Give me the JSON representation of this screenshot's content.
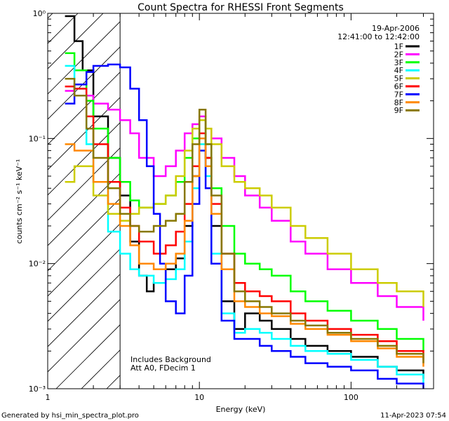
{
  "chart_data": {
    "type": "line",
    "title": "Count Spectra for RHESSI Front Segments",
    "xlabel": "Energy (keV)",
    "ylabel": "counts cm⁻² s⁻¹ keV⁻¹",
    "x_scale": "log",
    "y_scale": "log",
    "xlim": [
      1,
      350
    ],
    "ylim": [
      0.001,
      1
    ],
    "x_ticks": [
      {
        "value": 1,
        "label": "1"
      },
      {
        "value": 10,
        "label": "10"
      },
      {
        "value": 100,
        "label": "100"
      }
    ],
    "y_ticks": [
      {
        "value": 1,
        "label": "10⁰"
      },
      {
        "value": 0.1,
        "label": "10⁻¹"
      },
      {
        "value": 0.01,
        "label": "10⁻²"
      },
      {
        "value": 0.001,
        "label": "10⁻³"
      }
    ],
    "grid": false,
    "legend_position": "top-right",
    "info_date": "19-Apr-2006",
    "info_time": "12:41:00 to 12:42:00",
    "annotation_1": "Includes Background",
    "annotation_2": "Att A0, FDecim 1",
    "hatched_region_x": [
      1,
      3
    ],
    "series": [
      {
        "name": "1F",
        "color": "#000000",
        "points": [
          [
            1.3,
            0.95
          ],
          [
            1.5,
            0.6
          ],
          [
            1.7,
            0.35
          ],
          [
            2,
            0.15
          ],
          [
            2.5,
            0.07
          ],
          [
            3,
            0.035
          ],
          [
            3.5,
            0.015
          ],
          [
            4,
            0.008
          ],
          [
            4.5,
            0.006
          ],
          [
            5,
            0.007
          ],
          [
            6,
            0.009
          ],
          [
            7,
            0.011
          ],
          [
            8,
            0.02
          ],
          [
            9,
            0.05
          ],
          [
            10,
            0.1
          ],
          [
            11,
            0.07
          ],
          [
            12,
            0.02
          ],
          [
            14,
            0.005
          ],
          [
            17,
            0.003
          ],
          [
            20,
            0.004
          ],
          [
            25,
            0.0035
          ],
          [
            30,
            0.003
          ],
          [
            40,
            0.0025
          ],
          [
            50,
            0.0022
          ],
          [
            70,
            0.002
          ],
          [
            100,
            0.0018
          ],
          [
            150,
            0.0015
          ],
          [
            200,
            0.0014
          ],
          [
            300,
            0.0012
          ]
        ]
      },
      {
        "name": "2F",
        "color": "#ff00ff",
        "points": [
          [
            1.3,
            0.24
          ],
          [
            1.5,
            0.22
          ],
          [
            2,
            0.19
          ],
          [
            2.5,
            0.17
          ],
          [
            3,
            0.14
          ],
          [
            3.5,
            0.11
          ],
          [
            4,
            0.07
          ],
          [
            5,
            0.05
          ],
          [
            6,
            0.06
          ],
          [
            7,
            0.08
          ],
          [
            8,
            0.11
          ],
          [
            9,
            0.13
          ],
          [
            10,
            0.15
          ],
          [
            11,
            0.12
          ],
          [
            12,
            0.1
          ],
          [
            14,
            0.07
          ],
          [
            17,
            0.05
          ],
          [
            20,
            0.035
          ],
          [
            25,
            0.028
          ],
          [
            30,
            0.022
          ],
          [
            40,
            0.015
          ],
          [
            50,
            0.012
          ],
          [
            70,
            0.009
          ],
          [
            100,
            0.007
          ],
          [
            150,
            0.0055
          ],
          [
            200,
            0.0045
          ],
          [
            300,
            0.0035
          ]
        ]
      },
      {
        "name": "3F",
        "color": "#00ff00",
        "points": [
          [
            1.3,
            0.48
          ],
          [
            1.5,
            0.35
          ],
          [
            1.8,
            0.2
          ],
          [
            2,
            0.12
          ],
          [
            2.5,
            0.07
          ],
          [
            3,
            0.045
          ],
          [
            3.5,
            0.032
          ],
          [
            4,
            0.028
          ],
          [
            5,
            0.03
          ],
          [
            6,
            0.035
          ],
          [
            7,
            0.045
          ],
          [
            8,
            0.07
          ],
          [
            9,
            0.1
          ],
          [
            10,
            0.14
          ],
          [
            11,
            0.09
          ],
          [
            12,
            0.04
          ],
          [
            14,
            0.02
          ],
          [
            17,
            0.012
          ],
          [
            20,
            0.01
          ],
          [
            25,
            0.009
          ],
          [
            30,
            0.008
          ],
          [
            40,
            0.006
          ],
          [
            50,
            0.005
          ],
          [
            70,
            0.0042
          ],
          [
            100,
            0.0035
          ],
          [
            150,
            0.003
          ],
          [
            200,
            0.0025
          ],
          [
            300,
            0.002
          ]
        ]
      },
      {
        "name": "4F",
        "color": "#00ffff",
        "points": [
          [
            1.3,
            0.38
          ],
          [
            1.5,
            0.25
          ],
          [
            1.8,
            0.09
          ],
          [
            2,
            0.045
          ],
          [
            2.5,
            0.018
          ],
          [
            3,
            0.012
          ],
          [
            3.5,
            0.009
          ],
          [
            4,
            0.008
          ],
          [
            5,
            0.007
          ],
          [
            6,
            0.0075
          ],
          [
            7,
            0.009
          ],
          [
            8,
            0.015
          ],
          [
            9,
            0.04
          ],
          [
            10,
            0.09
          ],
          [
            11,
            0.05
          ],
          [
            12,
            0.012
          ],
          [
            14,
            0.004
          ],
          [
            17,
            0.0028
          ],
          [
            20,
            0.003
          ],
          [
            25,
            0.0028
          ],
          [
            30,
            0.0025
          ],
          [
            40,
            0.0022
          ],
          [
            50,
            0.002
          ],
          [
            70,
            0.0019
          ],
          [
            100,
            0.0017
          ],
          [
            150,
            0.0015
          ],
          [
            200,
            0.0013
          ],
          [
            300,
            0.0011
          ]
        ]
      },
      {
        "name": "5F",
        "color": "#cccc00",
        "points": [
          [
            1.3,
            0.045
          ],
          [
            1.5,
            0.06
          ],
          [
            2,
            0.035
          ],
          [
            2.5,
            0.025
          ],
          [
            3,
            0.022
          ],
          [
            3.5,
            0.025
          ],
          [
            4,
            0.028
          ],
          [
            5,
            0.03
          ],
          [
            6,
            0.035
          ],
          [
            7,
            0.05
          ],
          [
            8,
            0.08
          ],
          [
            9,
            0.12
          ],
          [
            10,
            0.14
          ],
          [
            11,
            0.12
          ],
          [
            12,
            0.09
          ],
          [
            14,
            0.06
          ],
          [
            17,
            0.045
          ],
          [
            20,
            0.04
          ],
          [
            25,
            0.035
          ],
          [
            30,
            0.028
          ],
          [
            40,
            0.02
          ],
          [
            50,
            0.016
          ],
          [
            70,
            0.012
          ],
          [
            100,
            0.009
          ],
          [
            150,
            0.007
          ],
          [
            200,
            0.006
          ],
          [
            300,
            0.0045
          ]
        ]
      },
      {
        "name": "6F",
        "color": "#ff0000",
        "points": [
          [
            1.3,
            0.26
          ],
          [
            1.5,
            0.25
          ],
          [
            1.8,
            0.15
          ],
          [
            2,
            0.09
          ],
          [
            2.5,
            0.045
          ],
          [
            3,
            0.028
          ],
          [
            3.5,
            0.02
          ],
          [
            4,
            0.015
          ],
          [
            5,
            0.012
          ],
          [
            6,
            0.014
          ],
          [
            7,
            0.018
          ],
          [
            8,
            0.03
          ],
          [
            9,
            0.06
          ],
          [
            10,
            0.11
          ],
          [
            11,
            0.07
          ],
          [
            12,
            0.03
          ],
          [
            14,
            0.012
          ],
          [
            17,
            0.007
          ],
          [
            20,
            0.006
          ],
          [
            25,
            0.0055
          ],
          [
            30,
            0.005
          ],
          [
            40,
            0.004
          ],
          [
            50,
            0.0035
          ],
          [
            70,
            0.003
          ],
          [
            100,
            0.0027
          ],
          [
            150,
            0.0024
          ],
          [
            200,
            0.002
          ],
          [
            300,
            0.0017
          ]
        ]
      },
      {
        "name": "7F",
        "color": "#0000ff",
        "points": [
          [
            1.3,
            0.19
          ],
          [
            1.5,
            0.27
          ],
          [
            1.8,
            0.34
          ],
          [
            2,
            0.38
          ],
          [
            2.5,
            0.39
          ],
          [
            3,
            0.37
          ],
          [
            3.5,
            0.25
          ],
          [
            4,
            0.14
          ],
          [
            4.5,
            0.06
          ],
          [
            5,
            0.025
          ],
          [
            5.5,
            0.01
          ],
          [
            6,
            0.005
          ],
          [
            7,
            0.004
          ],
          [
            8,
            0.008
          ],
          [
            9,
            0.03
          ],
          [
            10,
            0.08
          ],
          [
            11,
            0.04
          ],
          [
            12,
            0.01
          ],
          [
            14,
            0.0035
          ],
          [
            17,
            0.0025
          ],
          [
            20,
            0.0025
          ],
          [
            25,
            0.0022
          ],
          [
            30,
            0.002
          ],
          [
            40,
            0.0018
          ],
          [
            50,
            0.0016
          ],
          [
            70,
            0.0015
          ],
          [
            100,
            0.0014
          ],
          [
            150,
            0.0012
          ],
          [
            200,
            0.0011
          ],
          [
            300,
            0.001
          ]
        ]
      },
      {
        "name": "8F",
        "color": "#ff8800",
        "points": [
          [
            1.3,
            0.09
          ],
          [
            1.5,
            0.08
          ],
          [
            2,
            0.045
          ],
          [
            2.5,
            0.03
          ],
          [
            3,
            0.02
          ],
          [
            3.5,
            0.014
          ],
          [
            4,
            0.01
          ],
          [
            5,
            0.009
          ],
          [
            6,
            0.01
          ],
          [
            7,
            0.012
          ],
          [
            8,
            0.022
          ],
          [
            9,
            0.05
          ],
          [
            10,
            0.1
          ],
          [
            11,
            0.06
          ],
          [
            12,
            0.025
          ],
          [
            14,
            0.009
          ],
          [
            17,
            0.005
          ],
          [
            20,
            0.0045
          ],
          [
            25,
            0.004
          ],
          [
            30,
            0.0038
          ],
          [
            40,
            0.0033
          ],
          [
            50,
            0.003
          ],
          [
            70,
            0.0027
          ],
          [
            100,
            0.0024
          ],
          [
            150,
            0.0021
          ],
          [
            200,
            0.0018
          ],
          [
            300,
            0.0015
          ]
        ]
      },
      {
        "name": "9F",
        "color": "#887700",
        "points": [
          [
            1.3,
            0.3
          ],
          [
            1.5,
            0.22
          ],
          [
            1.8,
            0.12
          ],
          [
            2,
            0.07
          ],
          [
            2.5,
            0.04
          ],
          [
            3,
            0.025
          ],
          [
            3.5,
            0.02
          ],
          [
            4,
            0.018
          ],
          [
            5,
            0.02
          ],
          [
            6,
            0.022
          ],
          [
            7,
            0.025
          ],
          [
            8,
            0.045
          ],
          [
            9,
            0.09
          ],
          [
            10,
            0.17
          ],
          [
            11,
            0.09
          ],
          [
            12,
            0.035
          ],
          [
            14,
            0.012
          ],
          [
            17,
            0.006
          ],
          [
            20,
            0.005
          ],
          [
            25,
            0.0045
          ],
          [
            30,
            0.004
          ],
          [
            40,
            0.0035
          ],
          [
            50,
            0.0032
          ],
          [
            70,
            0.0028
          ],
          [
            100,
            0.0025
          ],
          [
            150,
            0.0022
          ],
          [
            200,
            0.0019
          ],
          [
            300,
            0.0016
          ]
        ]
      }
    ]
  },
  "footer": {
    "generated_by": "Generated by hsi_min_spectra_plot.pro",
    "date": "11-Apr-2023 07:54"
  }
}
